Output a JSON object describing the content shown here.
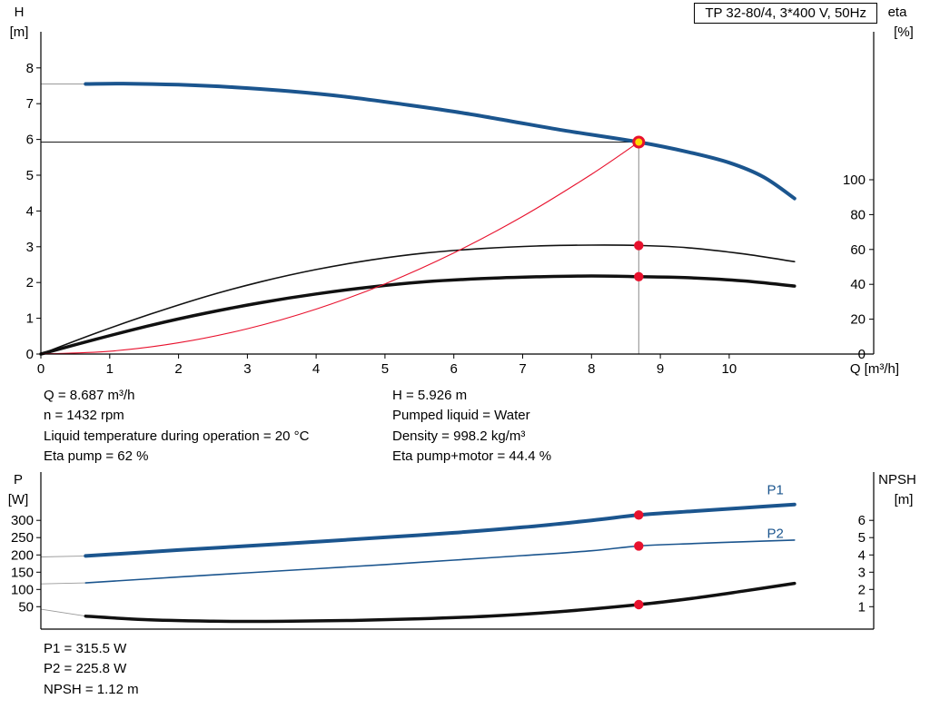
{
  "title_box": "TP 32-80/4, 3*400 V, 50Hz",
  "colors": {
    "blue": "#1b558e",
    "red": "#e8112d",
    "black": "#111111",
    "marker_yellow": "#ffd800",
    "grey": "#9a9a9a"
  },
  "info_top": {
    "col1": [
      "Q = 8.687 m³/h",
      "n = 1432 rpm",
      "Liquid temperature during operation = 20 °C",
      "Eta pump = 62 %"
    ],
    "col2": [
      "H = 5.926 m",
      "Pumped liquid = Water",
      "Density = 998.2 kg/m³",
      "Eta pump+motor = 44.4 %"
    ]
  },
  "info_bottom": [
    "P1 = 315.5 W",
    "P2 = 225.8 W",
    "NPSH = 1.12 m"
  ],
  "chart_data": [
    {
      "type": "line",
      "name": "qh-eta-chart",
      "xlabel": "Q [m³/h]",
      "left_header": [
        "H",
        "[m]"
      ],
      "right_header": [
        "eta",
        "[%]"
      ],
      "xlim": [
        0,
        12.1
      ],
      "ylim_left": [
        0,
        9.01
      ],
      "ylim_right": [
        0,
        184.9
      ],
      "x_ticks": [
        0,
        1,
        2,
        3,
        4,
        5,
        6,
        7,
        8,
        9,
        10
      ],
      "y_ticks_left": [
        0,
        1,
        2,
        3,
        4,
        5,
        6,
        7,
        8
      ],
      "y_ticks_right": [
        0,
        20,
        40,
        60,
        80,
        100
      ],
      "series": [
        {
          "name": "H-Q curve",
          "axis": "left",
          "color": "blue",
          "width": 4,
          "points": [
            [
              0.65,
              7.55
            ],
            [
              1.2,
              7.56
            ],
            [
              2,
              7.53
            ],
            [
              2.8,
              7.46
            ],
            [
              3.6,
              7.35
            ],
            [
              4.4,
              7.2
            ],
            [
              5.2,
              7.0
            ],
            [
              6,
              6.78
            ],
            [
              6.8,
              6.52
            ],
            [
              7.6,
              6.25
            ],
            [
              8.687,
              5.926
            ],
            [
              9.4,
              5.65
            ],
            [
              10,
              5.35
            ],
            [
              10.5,
              4.95
            ],
            [
              10.95,
              4.35
            ]
          ]
        },
        {
          "name": "eta pump",
          "axis": "right",
          "color": "black",
          "width": 1.6,
          "points": [
            [
              0,
              0
            ],
            [
              0.8,
              12
            ],
            [
              1.6,
              23
            ],
            [
              2.4,
              33
            ],
            [
              3.2,
              41.5
            ],
            [
              4,
              48.5
            ],
            [
              4.8,
              54
            ],
            [
              5.6,
              58
            ],
            [
              6.4,
              60.5
            ],
            [
              7.2,
              62
            ],
            [
              8,
              62.5
            ],
            [
              8.687,
              62.3
            ],
            [
              9.4,
              61
            ],
            [
              10.2,
              57.5
            ],
            [
              10.95,
              53
            ]
          ]
        },
        {
          "name": "eta pump+motor",
          "axis": "right",
          "color": "black",
          "width": 3.5,
          "points": [
            [
              0,
              0
            ],
            [
              0.8,
              8.5
            ],
            [
              1.6,
              16.5
            ],
            [
              2.4,
              23.5
            ],
            [
              3.2,
              29.5
            ],
            [
              4,
              34.5
            ],
            [
              4.8,
              38.5
            ],
            [
              5.6,
              41.5
            ],
            [
              6.4,
              43.3
            ],
            [
              7.2,
              44.3
            ],
            [
              8,
              44.8
            ],
            [
              8.687,
              44.4
            ],
            [
              9.4,
              43.8
            ],
            [
              10.2,
              42
            ],
            [
              10.95,
              39
            ]
          ]
        },
        {
          "name": "system curve",
          "axis": "left",
          "color": "red",
          "width": 1.1,
          "points": [
            [
              0,
              0
            ],
            [
              1,
              0.079
            ],
            [
              2,
              0.314
            ],
            [
              3,
              0.707
            ],
            [
              4,
              1.257
            ],
            [
              5,
              1.963
            ],
            [
              6,
              2.827
            ],
            [
              7,
              3.848
            ],
            [
              8,
              5.026
            ],
            [
              8.687,
              5.926
            ]
          ]
        }
      ],
      "extensions": [
        {
          "axis": "left",
          "color": "grey",
          "points": [
            [
              0,
              7.55
            ],
            [
              0.65,
              7.55
            ]
          ]
        }
      ],
      "duty_point": {
        "q": 8.687,
        "h": 5.926
      },
      "duty_dots": [
        {
          "axis": "right",
          "q": 8.687,
          "v": 62.3
        },
        {
          "axis": "right",
          "q": 8.687,
          "v": 44.4
        }
      ]
    },
    {
      "type": "line",
      "name": "power-npsh-chart",
      "xlabel": "",
      "left_header": [
        "P",
        "[W]"
      ],
      "right_header": [
        "NPSH",
        "[m]"
      ],
      "xlim": [
        0,
        12.1
      ],
      "ylim_left": [
        -15,
        440
      ],
      "ylim_right": [
        -0.3,
        8.8
      ],
      "x_ticks": [],
      "y_ticks_left": [
        50,
        100,
        150,
        200,
        250,
        300
      ],
      "y_ticks_right": [
        1,
        2,
        3,
        4,
        5,
        6
      ],
      "series": [
        {
          "name": "P1",
          "axis": "left",
          "color": "blue",
          "width": 4,
          "label": {
            "text": "P1",
            "q": 10.55,
            "v": 375
          },
          "points": [
            [
              0.65,
              197
            ],
            [
              2,
              214
            ],
            [
              3,
              226
            ],
            [
              4,
              238
            ],
            [
              5,
              251
            ],
            [
              6,
              264
            ],
            [
              7,
              280
            ],
            [
              8,
              300
            ],
            [
              8.687,
              315.5
            ],
            [
              9.5,
              327
            ],
            [
              10.2,
              336
            ],
            [
              10.95,
              346
            ]
          ]
        },
        {
          "name": "P2",
          "axis": "left",
          "color": "blue",
          "width": 1.6,
          "label": {
            "text": "P2",
            "q": 10.55,
            "v": 249
          },
          "points": [
            [
              0.65,
              119
            ],
            [
              2,
              136
            ],
            [
              3,
              148
            ],
            [
              4,
              160
            ],
            [
              5,
              172
            ],
            [
              6,
              185
            ],
            [
              7,
              198
            ],
            [
              8,
              212
            ],
            [
              8.687,
              225.8
            ],
            [
              9.5,
              233
            ],
            [
              10.2,
              238
            ],
            [
              10.95,
              243
            ]
          ]
        },
        {
          "name": "NPSH",
          "axis": "right",
          "color": "black",
          "width": 3.5,
          "points": [
            [
              0.65,
              0.45
            ],
            [
              1.5,
              0.25
            ],
            [
              2.5,
              0.16
            ],
            [
              3.5,
              0.15
            ],
            [
              4.5,
              0.2
            ],
            [
              5.5,
              0.3
            ],
            [
              6.5,
              0.45
            ],
            [
              7.5,
              0.7
            ],
            [
              8.687,
              1.12
            ],
            [
              9.5,
              1.5
            ],
            [
              10.2,
              1.9
            ],
            [
              10.95,
              2.35
            ]
          ]
        }
      ],
      "extensions": [
        {
          "axis": "left",
          "color": "grey",
          "points": [
            [
              0,
              194
            ],
            [
              0.65,
              197
            ]
          ]
        },
        {
          "axis": "left",
          "color": "grey",
          "points": [
            [
              0,
              116
            ],
            [
              0.65,
              119
            ]
          ]
        },
        {
          "axis": "right",
          "color": "grey",
          "points": [
            [
              0,
              0.85
            ],
            [
              0.65,
              0.45
            ]
          ]
        }
      ],
      "duty_dots": [
        {
          "axis": "left",
          "q": 8.687,
          "v": 315.5
        },
        {
          "axis": "left",
          "q": 8.687,
          "v": 225.8
        },
        {
          "axis": "right",
          "q": 8.687,
          "v": 1.12
        }
      ]
    }
  ]
}
